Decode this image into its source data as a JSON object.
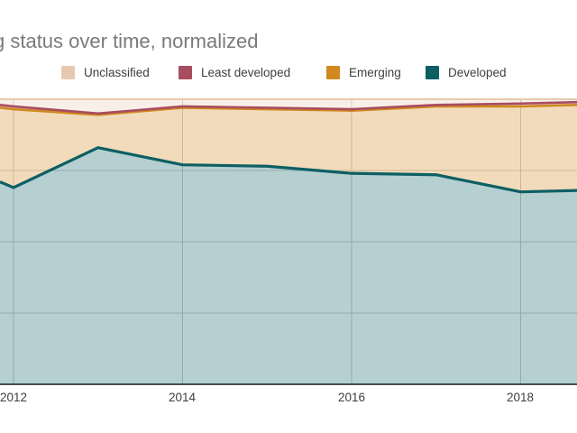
{
  "chart_data": {
    "type": "area",
    "stacked": true,
    "normalized": true,
    "title": "g status over time, normalized",
    "legend_position": "top",
    "x": [
      2011.84,
      2012,
      2013,
      2014,
      2015,
      2016,
      2017,
      2018,
      2018.67
    ],
    "x_ticks": [
      2012,
      2014,
      2016,
      2018
    ],
    "x_tick_labels": [
      "2012",
      "2014",
      "2016",
      "2018"
    ],
    "x_range_visible": [
      2011.84,
      2018.67
    ],
    "ylim": [
      0,
      100
    ],
    "y_gridline_percents": [
      0,
      25,
      50,
      75,
      100
    ],
    "series": [
      {
        "name": "Unclassified",
        "color": "#e7c9b2",
        "values": [
          2,
          2.5,
          5,
          2.5,
          3,
          3.5,
          2,
          1.5,
          1
        ]
      },
      {
        "name": "Least developed",
        "color": "#a84c5f",
        "values": [
          1,
          1,
          0.5,
          0.5,
          0.5,
          0.5,
          0.5,
          1,
          1
        ]
      },
      {
        "name": "Emerging",
        "color": "#d0891f",
        "values": [
          26,
          27.5,
          11.5,
          20,
          20,
          22,
          24,
          30,
          30
        ]
      },
      {
        "name": "Developed",
        "color": "#0d5f63",
        "values": [
          71,
          69,
          83,
          77,
          76.5,
          74,
          73.5,
          67.5,
          68
        ]
      }
    ],
    "stack_order_bottom_to_top": [
      "Developed",
      "Emerging",
      "Least developed",
      "Unclassified"
    ],
    "fill_opacity": 0.3,
    "colors": {
      "gridline": "#cccccc",
      "baseline": "#4d4d4d",
      "title_text": "#7a7a7a",
      "axis_label_text": "#3c4043",
      "legend_text": "#3c4043"
    }
  }
}
